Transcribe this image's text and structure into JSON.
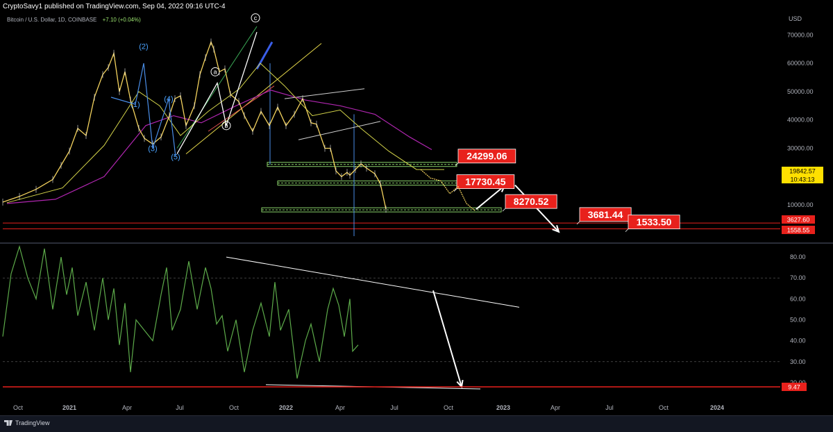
{
  "header": {
    "published": "CryptoSavy1 published on TradingView.com, Sep 04, 2022 09:16 UTC-4",
    "symbol": "Bitcoin / U.S. Dollar, 1D, COINBASE",
    "change": "+7.10 (+0.04%)"
  },
  "footer": {
    "brand": "TradingView"
  },
  "colors": {
    "background": "#000000",
    "candle": "#f4d35e",
    "ma_short": "#d4d44a",
    "ma_long": "#b026b0",
    "rsi": "#5dab4a",
    "level_box": "#8bd46b",
    "red_label": "#e8211c",
    "price_label": "#ffe000",
    "wave_line": "#4a8ee8"
  },
  "chart_data": [
    {
      "type": "line",
      "title": "",
      "panel": "price",
      "currency": "USD",
      "x_ticks": [
        "Oct",
        "2021",
        "Apr",
        "Jul",
        "Oct",
        "2022",
        "Apr",
        "Jul",
        "Oct",
        "2023",
        "Apr",
        "Jul",
        "Oct",
        "2024"
      ],
      "y_ticks": [
        10000,
        20000,
        30000,
        40000,
        50000,
        60000,
        70000
      ],
      "y_tick_labels": [
        "10000.00",
        "20000.00",
        "30000.00",
        "40000.00",
        "50000.00",
        "60000.00",
        "70000.00"
      ],
      "ylim": [
        -1500,
        73500
      ],
      "x_range_days": [
        0,
        1280
      ],
      "series": [
        {
          "x": [
            0,
            30,
            60,
            90,
            105,
            120,
            135,
            150,
            165,
            180,
            190,
            200,
            210,
            220,
            230,
            245,
            255,
            270,
            285,
            300,
            310,
            320,
            330,
            345,
            355,
            365,
            375,
            380,
            390,
            400,
            410,
            425,
            435,
            450,
            465,
            480,
            495,
            510,
            525,
            540,
            555,
            565,
            580,
            590,
            600,
            610,
            620,
            625,
            635,
            645,
            655,
            670,
            680,
            690
          ],
          "values": [
            11000,
            13000,
            15500,
            19000,
            24000,
            29000,
            37000,
            34500,
            48000,
            56000,
            58500,
            63500,
            50000,
            57000,
            47000,
            37000,
            33500,
            31500,
            34000,
            41500,
            47500,
            48500,
            38000,
            45000,
            56000,
            62000,
            67500,
            65000,
            57000,
            58000,
            49000,
            46500,
            41500,
            36000,
            43000,
            38000,
            44500,
            38000,
            42000,
            47500,
            39000,
            38500,
            30000,
            30000,
            22000,
            20000,
            21500,
            20500,
            22500,
            24500,
            23000,
            21000,
            17500,
            8500
          ]
        }
      ],
      "levels": [
        {
          "label": "24299.06",
          "value": 24299.06
        },
        {
          "label": "17730.45",
          "value": 17730.45
        },
        {
          "label": "8270.52",
          "value": 8270.52
        },
        {
          "label": "3681.44",
          "value": 3681.44
        },
        {
          "label": "1533.50",
          "value": 1533.5
        }
      ],
      "axis_labels": [
        {
          "label": "19842.57",
          "value": 19842.57,
          "style": "yellow"
        },
        {
          "label": "10:43:13",
          "value": 17500,
          "style": "yellow"
        },
        {
          "label": "3627.60",
          "value": 3627.6,
          "style": "red"
        },
        {
          "label": "1558.55",
          "value": 1558.55,
          "style": "red"
        }
      ],
      "wave_labels": [
        {
          "text": "(2)",
          "x": 207,
          "y": 66000
        },
        {
          "text": "(1)",
          "x": 195,
          "y": 45500
        },
        {
          "text": "(4)",
          "x": 243,
          "y": 47500
        },
        {
          "text": "(3)",
          "x": 220,
          "y": 30000
        },
        {
          "text": "(5)",
          "x": 253,
          "y": 27000
        },
        {
          "text": "a",
          "x": 310,
          "y": 57000
        },
        {
          "text": "b",
          "x": 326,
          "y": 38000
        },
        {
          "text": "c",
          "x": 368,
          "y": 76000
        }
      ]
    },
    {
      "type": "line",
      "title": "",
      "panel": "rsi",
      "y_ticks": [
        20,
        30,
        40,
        50,
        60,
        70,
        80
      ],
      "y_tick_labels": [
        "20.00",
        "30.00",
        "40.00",
        "50.00",
        "60.00",
        "70.00",
        "80.00"
      ],
      "ylim": [
        13,
        86
      ],
      "x_range_days": [
        0,
        1280
      ],
      "series": [
        {
          "x": [
            0,
            15,
            30,
            45,
            60,
            75,
            90,
            105,
            115,
            125,
            135,
            150,
            165,
            180,
            190,
            200,
            210,
            220,
            230,
            240,
            255,
            270,
            285,
            295,
            305,
            320,
            335,
            350,
            365,
            375,
            385,
            395,
            405,
            420,
            435,
            450,
            465,
            480,
            490,
            500,
            515,
            530,
            545,
            555,
            570,
            585,
            595,
            605,
            615,
            625,
            630,
            640
          ],
          "values": [
            42,
            72,
            85,
            70,
            60,
            84,
            55,
            80,
            62,
            75,
            52,
            68,
            45,
            70,
            50,
            65,
            38,
            58,
            25,
            50,
            45,
            40,
            62,
            75,
            45,
            55,
            78,
            55,
            75,
            65,
            48,
            52,
            35,
            50,
            25,
            45,
            58,
            42,
            68,
            45,
            55,
            22,
            40,
            48,
            30,
            55,
            65,
            57,
            42,
            60,
            35,
            38
          ]
        }
      ],
      "lines": [
        {
          "name": "",
          "value_start": 80,
          "value_end": 56
        },
        {
          "name": "",
          "value_start": 19,
          "value_end": 17
        },
        {
          "name": "",
          "value": 9.47,
          "label": "9.47"
        }
      ]
    }
  ]
}
